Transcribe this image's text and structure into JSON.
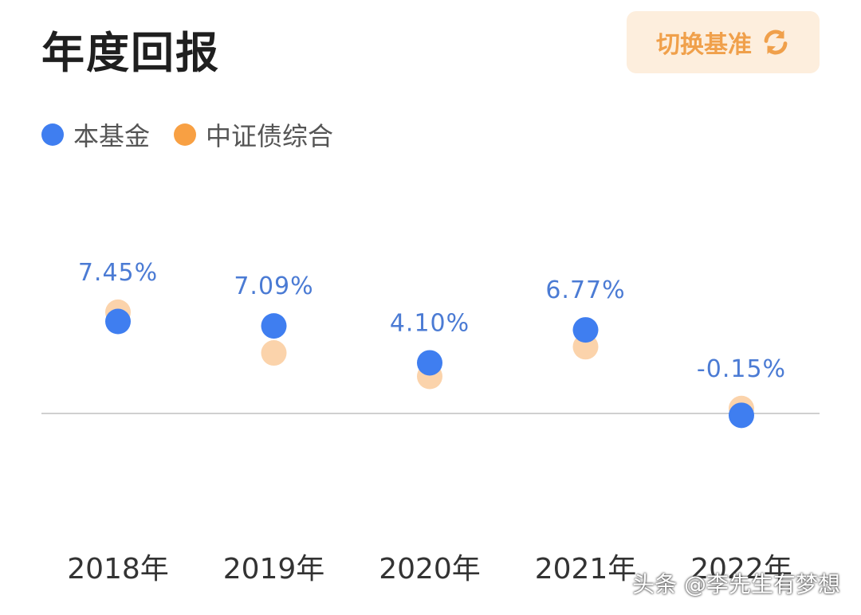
{
  "header": {
    "title": "年度回报",
    "switch_label": "切换基准",
    "switch_icon": "refresh-icon"
  },
  "colors": {
    "fund": "#3f7ef0",
    "benchmark": "#fbd3ab",
    "benchmark_legend": "#f8a043",
    "label": "#4b7bd4",
    "axis": "#d0d0d0",
    "tick": "#333333"
  },
  "watermark": "头条 @李先生有梦想",
  "chart_data": {
    "type": "scatter",
    "categories": [
      "2018年",
      "2019年",
      "2020年",
      "2021年",
      "2022年"
    ],
    "series": [
      {
        "name": "本基金",
        "values": [
          7.45,
          7.09,
          4.1,
          6.77,
          -0.15
        ],
        "labels": [
          "7.45%",
          "7.09%",
          "4.10%",
          "6.77%",
          "-0.15%"
        ]
      },
      {
        "name": "中证债综合",
        "values": [
          8.2,
          4.9,
          3.0,
          5.4,
          0.4
        ]
      }
    ],
    "ylim": [
      -5,
      15
    ],
    "zero_line": true,
    "grid": false,
    "legend": "top-left"
  }
}
